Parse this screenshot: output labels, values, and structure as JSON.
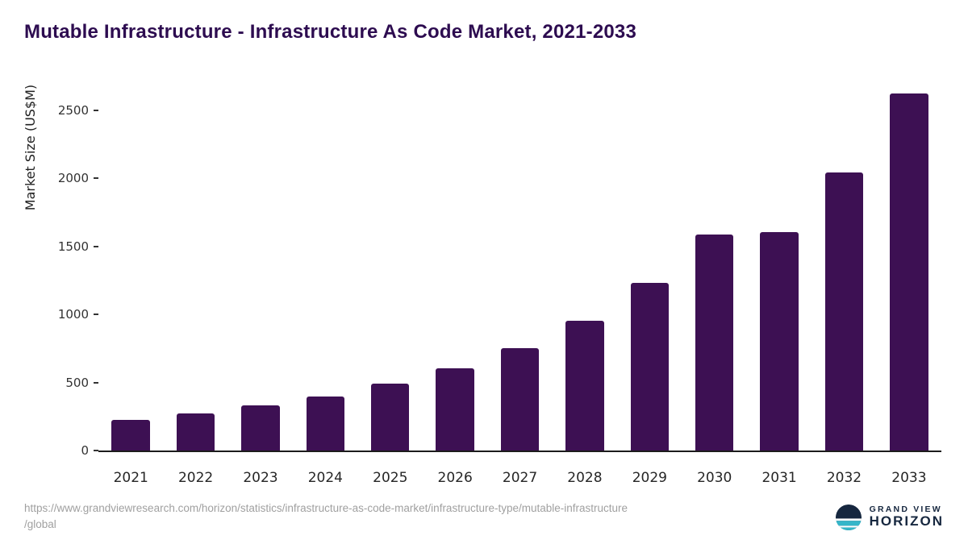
{
  "title": "Mutable Infrastructure - Infrastructure As Code Market, 2021-2033",
  "chart_data": {
    "type": "bar",
    "categories": [
      "2021",
      "2022",
      "2023",
      "2024",
      "2025",
      "2026",
      "2027",
      "2028",
      "2029",
      "2030",
      "2031",
      "2032",
      "2033"
    ],
    "values": [
      225,
      270,
      330,
      395,
      490,
      605,
      755,
      955,
      1230,
      1585,
      1605,
      2040,
      2625
    ],
    "title": "Mutable Infrastructure - Infrastructure As Code Market, 2021-2033",
    "xlabel": "",
    "ylabel": "Market Size (US$M)",
    "yticks": [
      0,
      500,
      1000,
      1500,
      2000,
      2500
    ],
    "ylim": [
      0,
      2700
    ],
    "grid": false,
    "legend": "none",
    "bar_color": "#3d1053"
  },
  "footer": {
    "source_line1": "https://www.grandviewresearch.com/horizon/statistics/infrastructure-as-code-market/infrastructure-type/mutable-infrastructure",
    "source_line2": "/global",
    "brand_top": "GRAND VIEW",
    "brand_bottom": "HORIZON"
  },
  "colors": {
    "title": "#2d0c50",
    "bar": "#3d1053",
    "axis_text": "#333333",
    "source_text": "#a0a0a0",
    "brand_navy": "#16273f",
    "brand_teal": "#35b6c9"
  }
}
